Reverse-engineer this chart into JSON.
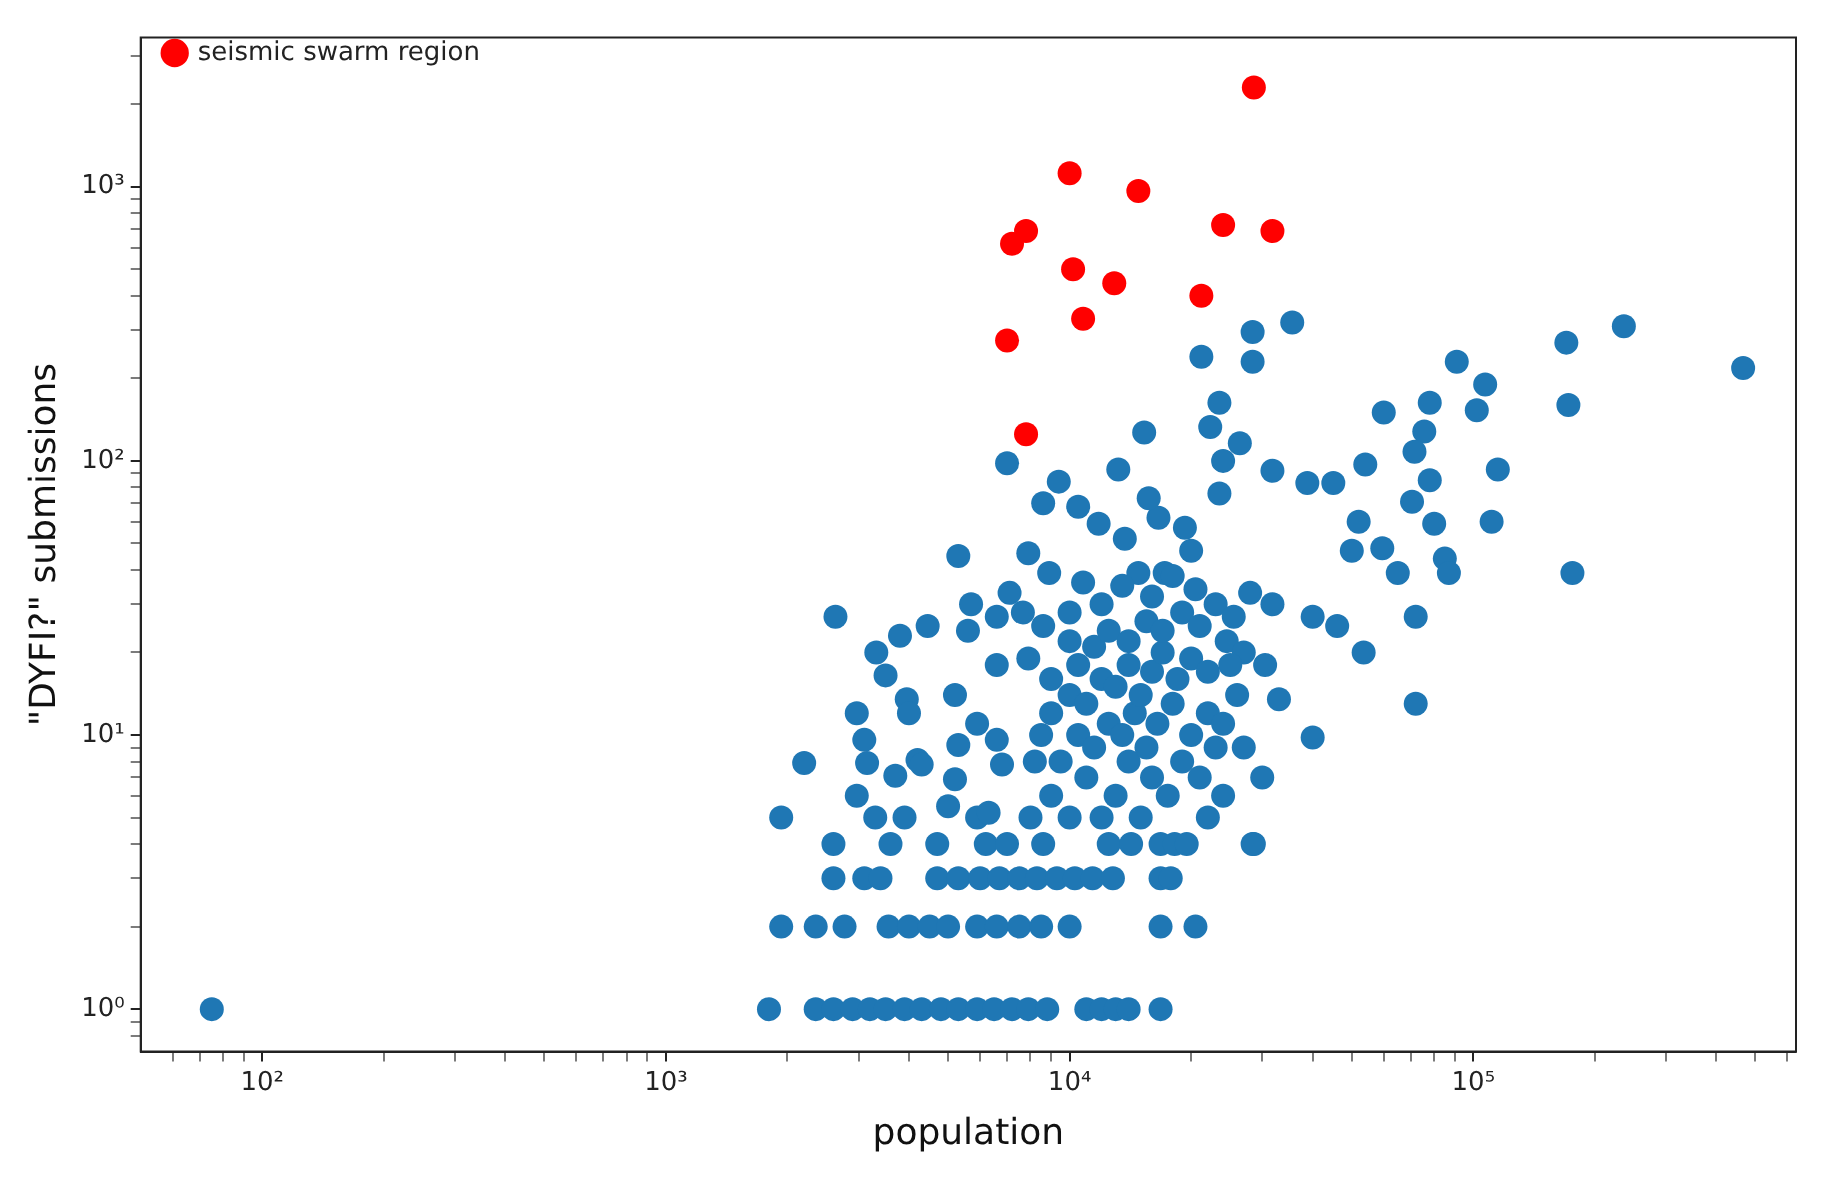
{
  "chart_data": {
    "type": "scatter",
    "xlabel": "population",
    "ylabel": "\"DYFI?\" submissions",
    "log": "xy",
    "grid": false,
    "legend": "top left",
    "marker": "circle",
    "xlim": [
      50,
      630000
    ],
    "ylim": [
      0.7,
      3500
    ],
    "xticks": [
      {
        "value": 60,
        "label": null
      },
      {
        "value": 70,
        "label": null
      },
      {
        "value": 80,
        "label": null
      },
      {
        "value": 90,
        "label": null
      },
      {
        "value": 100,
        "label": "10²"
      },
      {
        "value": 200,
        "label": null
      },
      {
        "value": 300,
        "label": null
      },
      {
        "value": 400,
        "label": null
      },
      {
        "value": 500,
        "label": null
      },
      {
        "value": 600,
        "label": null
      },
      {
        "value": 700,
        "label": null
      },
      {
        "value": 800,
        "label": null
      },
      {
        "value": 900,
        "label": null
      },
      {
        "value": 1000,
        "label": "10³"
      },
      {
        "value": 2000,
        "label": null
      },
      {
        "value": 3000,
        "label": null
      },
      {
        "value": 4000,
        "label": null
      },
      {
        "value": 5000,
        "label": null
      },
      {
        "value": 6000,
        "label": null
      },
      {
        "value": 7000,
        "label": null
      },
      {
        "value": 8000,
        "label": null
      },
      {
        "value": 9000,
        "label": null
      },
      {
        "value": 10000,
        "label": "10⁴"
      },
      {
        "value": 20000,
        "label": null
      },
      {
        "value": 30000,
        "label": null
      },
      {
        "value": 40000,
        "label": null
      },
      {
        "value": 50000,
        "label": null
      },
      {
        "value": 60000,
        "label": null
      },
      {
        "value": 70000,
        "label": null
      },
      {
        "value": 80000,
        "label": null
      },
      {
        "value": 90000,
        "label": null
      },
      {
        "value": 100000,
        "label": "10⁵"
      },
      {
        "value": 200000,
        "label": null
      },
      {
        "value": 300000,
        "label": null
      },
      {
        "value": 400000,
        "label": null
      },
      {
        "value": 500000,
        "label": null
      },
      {
        "value": 600000,
        "label": null
      }
    ],
    "yticks": [
      {
        "value": 0.8,
        "label": null
      },
      {
        "value": 0.9,
        "label": null
      },
      {
        "value": 1,
        "label": "10⁰"
      },
      {
        "value": 2,
        "label": null
      },
      {
        "value": 3,
        "label": null
      },
      {
        "value": 4,
        "label": null
      },
      {
        "value": 5,
        "label": null
      },
      {
        "value": 6,
        "label": null
      },
      {
        "value": 7,
        "label": null
      },
      {
        "value": 8,
        "label": null
      },
      {
        "value": 9,
        "label": null
      },
      {
        "value": 10,
        "label": "10¹"
      },
      {
        "value": 20,
        "label": null
      },
      {
        "value": 30,
        "label": null
      },
      {
        "value": 40,
        "label": null
      },
      {
        "value": 50,
        "label": null
      },
      {
        "value": 60,
        "label": null
      },
      {
        "value": 70,
        "label": null
      },
      {
        "value": 80,
        "label": null
      },
      {
        "value": 90,
        "label": null
      },
      {
        "value": 100,
        "label": "10²"
      },
      {
        "value": 200,
        "label": null
      },
      {
        "value": 300,
        "label": null
      },
      {
        "value": 400,
        "label": null
      },
      {
        "value": 500,
        "label": null
      },
      {
        "value": 600,
        "label": null
      },
      {
        "value": 700,
        "label": null
      },
      {
        "value": 800,
        "label": null
      },
      {
        "value": 900,
        "label": null
      },
      {
        "value": 1000,
        "label": "10³"
      },
      {
        "value": 2000,
        "label": null
      },
      {
        "value": 3000,
        "label": null
      }
    ],
    "series": [
      {
        "color": "#1f77b4",
        "x": [
          75,
          1800,
          2350,
          2600,
          2900,
          3200,
          3500,
          3900,
          4300,
          4800,
          5300,
          5900,
          6500,
          7200,
          7900,
          8800,
          11000,
          12000,
          13000,
          14000,
          16800,
          1930,
          2350,
          2770,
          3560,
          4000,
          4500,
          5000,
          5900,
          6600,
          7500,
          8500,
          10000,
          16800,
          20500,
          2600,
          3100,
          3400,
          4700,
          5300,
          6000,
          6700,
          7500,
          8300,
          9300,
          10300,
          11400,
          12800,
          16800,
          17800,
          2600,
          3600,
          4700,
          6200,
          7000,
          8600,
          12500,
          14200,
          16800,
          18200,
          28400,
          1930,
          3300,
          3900,
          5900,
          6300,
          5200,
          5000,
          2970,
          3700,
          2200,
          3100,
          3150,
          4200,
          4300,
          5300,
          6600,
          6800,
          5900,
          2970,
          5200,
          6600,
          7900,
          3950,
          4000,
          3500,
          4450,
          3800,
          3320,
          5600,
          6600,
          7660,
          8600,
          10000,
          2630,
          5700,
          7100,
          14800,
          17200,
          20000,
          10800,
          7900,
          8900,
          5300,
          11800,
          13700,
          16600,
          19300,
          15700,
          8600,
          10500,
          9400,
          23500,
          13200,
          7000,
          26400,
          24000,
          15300,
          23500,
          22300,
          21200,
          8000,
          9000,
          10000,
          11000,
          12000,
          13000,
          14000,
          15000,
          16000,
          17500,
          19000,
          21000,
          23000,
          9500,
          10500,
          11500,
          12500,
          13500,
          14500,
          15500,
          16500,
          18000,
          20000,
          22000,
          24000,
          26000,
          9000,
          10000,
          11000,
          12000,
          13000,
          14000,
          15000,
          16000,
          17000,
          18500,
          20000,
          22000,
          24500,
          27000,
          10500,
          11500,
          12500,
          14000,
          15500,
          17000,
          19000,
          21000,
          23000,
          25500,
          28000,
          12000,
          13500,
          16000,
          18000,
          20500,
          9000,
          8500,
          8200,
          10000,
          25000,
          27000,
          24000,
          19500,
          22000,
          35600,
          28400,
          28400,
          170000,
          236000,
          466000,
          91000,
          107000,
          102000,
          172000,
          60000,
          78000,
          75600,
          71500,
          115000,
          54000,
          31800,
          38800,
          45000,
          78000,
          70500,
          52000,
          80000,
          111000,
          59500,
          50000,
          65000,
          85000,
          87000,
          176000,
          72000,
          53500,
          72000,
          40000,
          30000,
          28600,
          46000,
          31800,
          40000,
          33000,
          30500
        ],
        "values": [
          1,
          1,
          1,
          1,
          1,
          1,
          1,
          1,
          1,
          1,
          1,
          1,
          1,
          1,
          1,
          1,
          1,
          1,
          1,
          1,
          1,
          2,
          2,
          2,
          2,
          2,
          2,
          2,
          2,
          2,
          2,
          2,
          2,
          2,
          2,
          3,
          3,
          3,
          3,
          3,
          3,
          3,
          3,
          3,
          3,
          3,
          3,
          3,
          3,
          3,
          4,
          4,
          4,
          4,
          4,
          4,
          4,
          4,
          4,
          4,
          4,
          5,
          5,
          5,
          5,
          5.2,
          6.9,
          5.5,
          6,
          7.1,
          7.9,
          9.6,
          7.9,
          8.1,
          7.8,
          9.2,
          9.6,
          7.8,
          11,
          12,
          14,
          18,
          19,
          13.5,
          12,
          16.5,
          25,
          23,
          20,
          24,
          27,
          28,
          25,
          28,
          27,
          30,
          33,
          39,
          39,
          47,
          36,
          46,
          39,
          45,
          59,
          52,
          62,
          57,
          73,
          70,
          68,
          84,
          76,
          93,
          98,
          116,
          100,
          127,
          163,
          133,
          240,
          5,
          6,
          5,
          7,
          5,
          6,
          8,
          5,
          7,
          6,
          8,
          7,
          9,
          8,
          10,
          9,
          11,
          10,
          12,
          9,
          11,
          13,
          10,
          12,
          11,
          14,
          12,
          14,
          13,
          16,
          15,
          18,
          14,
          17,
          20,
          16,
          19,
          17,
          22,
          20,
          18,
          21,
          24,
          22,
          26,
          24,
          28,
          25,
          30,
          27,
          33,
          30,
          35,
          32,
          38,
          34,
          16,
          10,
          8,
          22,
          18,
          9,
          6,
          4,
          5,
          320,
          295,
          230,
          270,
          310,
          218,
          230,
          190,
          153,
          160,
          150,
          163,
          128,
          108,
          93,
          97,
          92,
          83,
          83,
          85,
          71,
          60,
          59,
          60,
          48,
          47,
          39,
          44,
          39,
          39,
          27,
          20,
          13,
          9.8,
          7,
          4,
          25,
          30,
          27,
          13.5,
          18
        ]
      },
      {
        "name": "seismic swarm region",
        "color": "#ff0000",
        "x": [
          28600,
          10000,
          14800,
          24000,
          31800,
          7800,
          7200,
          10200,
          12900,
          21200,
          10800,
          7000,
          7800
        ],
        "values": [
          2300,
          1120,
          965,
          725,
          690,
          690,
          620,
          500,
          445,
          400,
          330,
          275,
          125
        ]
      }
    ]
  }
}
